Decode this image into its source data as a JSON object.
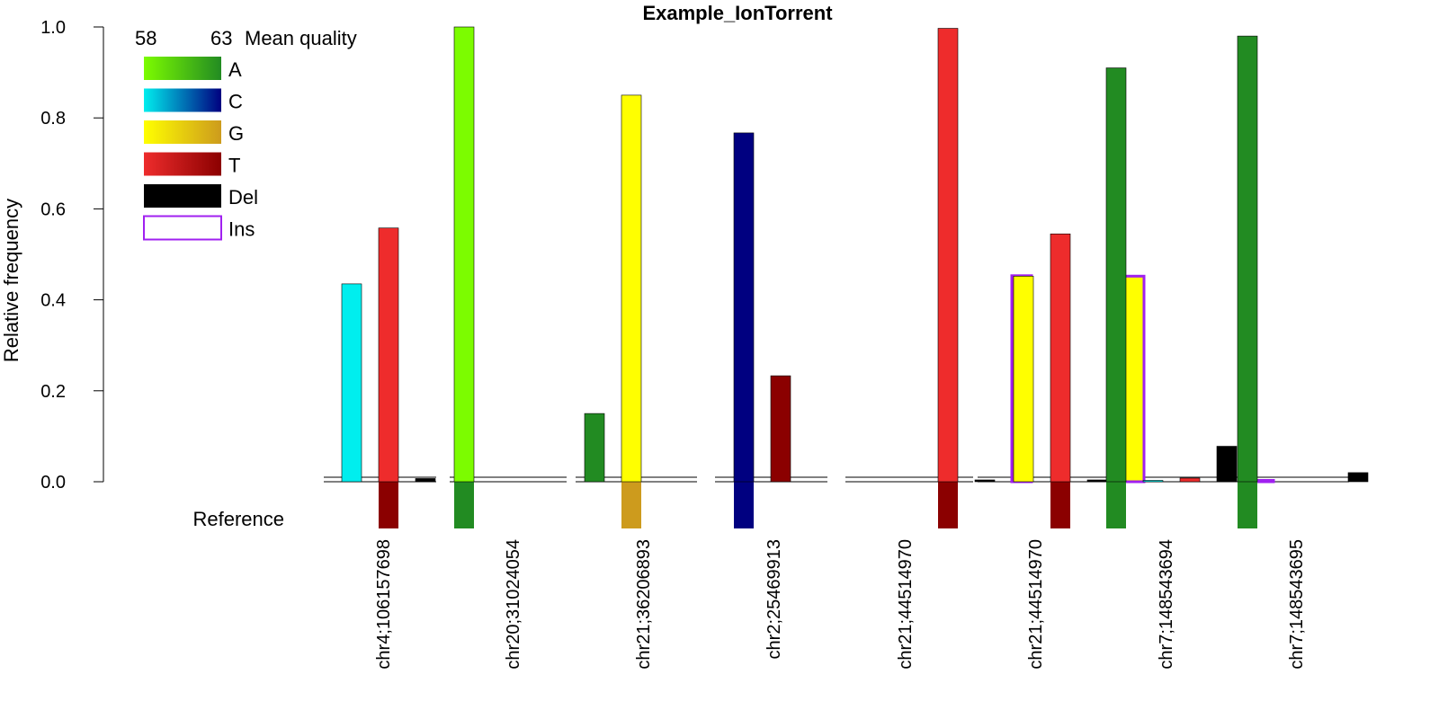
{
  "chart_data": {
    "type": "bar",
    "title": "Example_IonTorrent",
    "ylabel": "Relative frequency",
    "xlabel": "",
    "ylim": [
      0,
      1
    ],
    "yticks": [
      "0.0",
      "0.2",
      "0.4",
      "0.6",
      "0.8",
      "1.0"
    ],
    "reference_label": "Reference",
    "legend": {
      "placement": "top-left",
      "quality_title": "Mean quality",
      "quality_min": "58",
      "quality_max": "63",
      "entries": [
        {
          "label": "A",
          "low_color": "#7CFC00",
          "high_color": "#228B22",
          "outline": false
        },
        {
          "label": "C",
          "low_color": "#00EEEE",
          "high_color": "#000080",
          "outline": false
        },
        {
          "label": "G",
          "low_color": "#FFFF00",
          "high_color": "#CD9B1D",
          "outline": false
        },
        {
          "label": "T",
          "low_color": "#EE2C2C",
          "high_color": "#8B0000",
          "outline": false
        },
        {
          "label": "Del",
          "low_color": "#000000",
          "high_color": "#000000",
          "outline": false
        },
        {
          "label": "Ins",
          "low_color": "#A020F0",
          "high_color": "#A020F0",
          "outline": true
        }
      ]
    },
    "groups": [
      {
        "label": "chr4;106157698",
        "reference": [
          {
            "slot": 1,
            "color": "#8B0000"
          }
        ],
        "bars": [
          {
            "slot": 0,
            "base": "C",
            "value": 0.435,
            "color": "#00EEEE"
          },
          {
            "slot": 1,
            "base": "T",
            "value": 0.558,
            "color": "#EE2C2C"
          },
          {
            "slot": 2,
            "base": "Del",
            "value": 0.007,
            "color": "#000000"
          }
        ]
      },
      {
        "label": "chr20;31024054",
        "reference": [
          {
            "slot": 0,
            "color": "#228B22"
          }
        ],
        "bars": [
          {
            "slot": 0,
            "base": "A",
            "value": 1.0,
            "color": "#7CFC00"
          }
        ]
      },
      {
        "label": "chr21;36206893",
        "reference": [
          {
            "slot": 1,
            "color": "#CD9B1D"
          }
        ],
        "bars": [
          {
            "slot": 0,
            "base": "A",
            "value": 0.15,
            "color": "#228B22"
          },
          {
            "slot": 1,
            "base": "G",
            "value": 0.85,
            "color": "#FFFF00"
          }
        ]
      },
      {
        "label": "chr2;25469913",
        "reference": [
          {
            "slot": 0,
            "color": "#000080"
          }
        ],
        "bars": [
          {
            "slot": 0,
            "base": "C",
            "value": 0.767,
            "color": "#000080"
          },
          {
            "slot": 1,
            "base": "T",
            "value": 0.233,
            "color": "#8B0000"
          }
        ]
      },
      {
        "label": "chr21;44514970",
        "reference": [
          {
            "slot": 1,
            "color": "#8B0000"
          }
        ],
        "bars": [
          {
            "slot": 1,
            "base": "T",
            "value": 0.997,
            "color": "#EE2C2C"
          },
          {
            "slot": 2,
            "base": "Del",
            "value": 0.004,
            "color": "#000000"
          },
          {
            "slot": 3,
            "base": "Ins",
            "value": 0.453,
            "color": "#EE2C2C",
            "outline": "#A020F0"
          }
        ]
      },
      {
        "label": "chr21;44514970",
        "reference": [
          {
            "slot": 1,
            "color": "#8B0000"
          }
        ],
        "bars": [
          {
            "slot": 0,
            "base": "G",
            "value": 0.452,
            "color": "#FFFF00"
          },
          {
            "slot": 1,
            "base": "T",
            "value": 0.545,
            "color": "#EE2C2C"
          },
          {
            "slot": 2,
            "base": "Del",
            "value": 0.004,
            "color": "#000000"
          },
          {
            "slot": 3,
            "base": "Ins",
            "value": 0.452,
            "color": "#FFFF00",
            "outline": "#A020F0"
          }
        ]
      },
      {
        "label": "chr7;148543694",
        "reference": [
          {
            "slot": 0,
            "color": "#228B22"
          }
        ],
        "bars": [
          {
            "slot": 0,
            "base": "A",
            "value": 0.91,
            "color": "#228B22"
          },
          {
            "slot": 1,
            "base": "C",
            "value": 0.002,
            "color": "#00EEEE"
          },
          {
            "slot": 2,
            "base": "T",
            "value": 0.008,
            "color": "#EE2C2C"
          },
          {
            "slot": 3,
            "base": "Del",
            "value": 0.078,
            "color": "#000000"
          },
          {
            "slot": 4,
            "base": "Ins",
            "value": 0.002,
            "color": "#A020F0",
            "outline": "#A020F0"
          }
        ]
      },
      {
        "label": "chr7;148543695",
        "reference": [
          {
            "slot": 0,
            "color": "#228B22"
          }
        ],
        "bars": [
          {
            "slot": 0,
            "base": "A",
            "value": 0.98,
            "color": "#228B22"
          },
          {
            "slot": 3,
            "base": "Del",
            "value": 0.02,
            "color": "#000000"
          }
        ]
      }
    ]
  }
}
